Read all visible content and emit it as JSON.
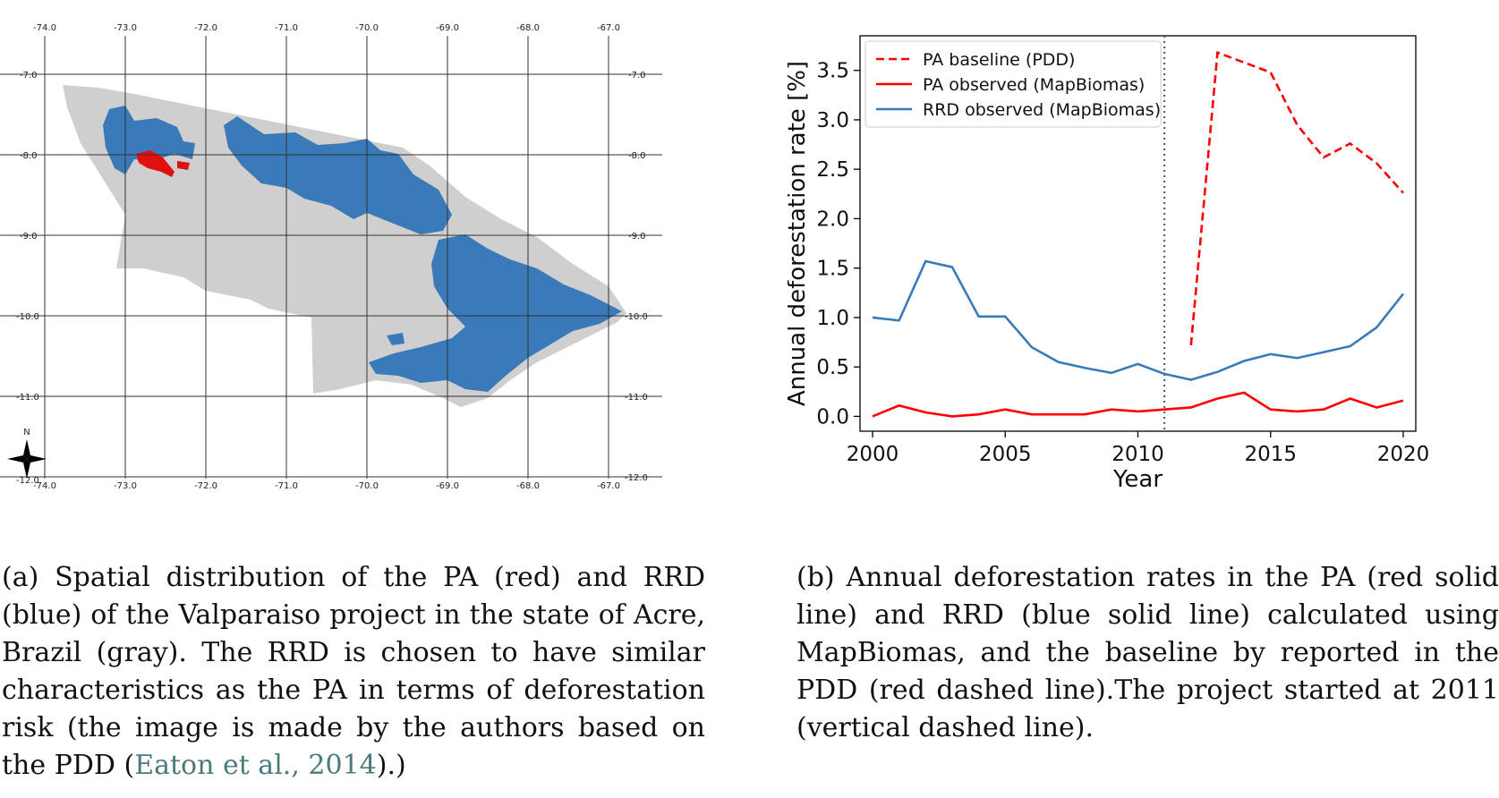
{
  "map": {
    "x_ticks": [
      "-74.0",
      "-73.0",
      "-72.0",
      "-71.0",
      "-70.0",
      "-69.0",
      "-68.0",
      "-67.0"
    ],
    "y_ticks": [
      "-7.0",
      "-8.0",
      "-9.0",
      "-10.0",
      "-11.0",
      "-12.0"
    ],
    "north_label": "N",
    "colors": {
      "state": "#cfcfcf",
      "rrd": "#3a7ab8",
      "pa": "#e01010",
      "grid": "#333333"
    }
  },
  "chart_data": {
    "type": "line",
    "xlabel": "Year",
    "ylabel": "Annual deforestation rate [%]",
    "xlim": [
      2000,
      2020
    ],
    "ylim": [
      -0.15,
      3.85
    ],
    "x_ticks": [
      "2000",
      "2005",
      "2010",
      "2015",
      "2020"
    ],
    "y_ticks": [
      "0.0",
      "0.5",
      "1.0",
      "1.5",
      "2.0",
      "2.5",
      "3.0",
      "3.5"
    ],
    "vline_x": 2011,
    "legend_position": "upper-left",
    "series": [
      {
        "name": "PA baseline (PDD)",
        "color": "#ff0000",
        "style": "dashed",
        "x": [
          2012,
          2013,
          2014,
          2015,
          2016,
          2017,
          2018,
          2019,
          2020
        ],
        "y": [
          0.72,
          3.68,
          3.58,
          3.48,
          2.95,
          2.62,
          2.76,
          2.56,
          2.26
        ]
      },
      {
        "name": "PA observed (MapBiomas)",
        "color": "#ff0000",
        "style": "solid",
        "x": [
          2000,
          2001,
          2002,
          2003,
          2004,
          2005,
          2006,
          2007,
          2008,
          2009,
          2010,
          2011,
          2012,
          2013,
          2014,
          2015,
          2016,
          2017,
          2018,
          2019,
          2020
        ],
        "y": [
          0.0,
          0.11,
          0.04,
          0.0,
          0.02,
          0.07,
          0.02,
          0.02,
          0.02,
          0.07,
          0.05,
          0.07,
          0.09,
          0.18,
          0.24,
          0.07,
          0.05,
          0.07,
          0.18,
          0.09,
          0.16
        ]
      },
      {
        "name": "RRD observed (MapBiomas)",
        "color": "#3a7ab8",
        "style": "solid",
        "x": [
          2000,
          2001,
          2002,
          2003,
          2004,
          2005,
          2006,
          2007,
          2008,
          2009,
          2010,
          2011,
          2012,
          2013,
          2014,
          2015,
          2016,
          2017,
          2018,
          2019,
          2020
        ],
        "y": [
          1.0,
          0.97,
          1.57,
          1.51,
          1.01,
          1.01,
          0.7,
          0.55,
          0.49,
          0.44,
          0.53,
          0.43,
          0.37,
          0.45,
          0.56,
          0.63,
          0.59,
          0.65,
          0.71,
          0.9,
          1.24
        ]
      }
    ]
  },
  "captions": {
    "a": {
      "text": "(a) Spatial distribution of the PA (red) and RRD (blue) of the Valparaiso project in the state of Acre, Brazil (gray). The RRD is chosen to have similar characteristics as the PA in terms of deforestation risk (the image is made by the authors based on the PDD (",
      "cite": "Eaton et al., 2014",
      "tail": ").)"
    },
    "b": {
      "text": "(b) Annual deforestation rates in the PA (red solid line) and RRD (blue solid line) calculated using MapBiomas, and the baseline by reported in the PDD (red dashed line).The project started at 2011 (vertical dashed line)."
    }
  }
}
